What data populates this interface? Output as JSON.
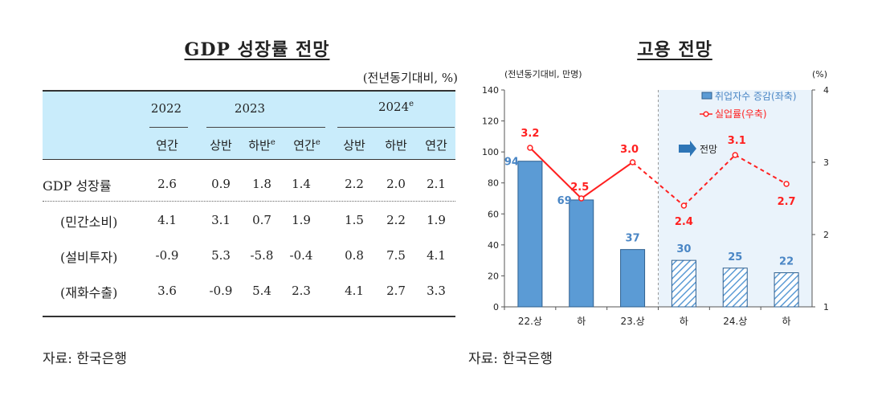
{
  "left": {
    "title": "GDP 성장률 전망",
    "unit": "(전년동기대비, %)",
    "header": {
      "y2022": "2022",
      "y2023": "2023",
      "y2024_base": "2024",
      "y2024_sup": "e",
      "c_annual": "연간",
      "c_h1": "상반",
      "c_h2_base": "하반",
      "c_h2_sup": "e",
      "c_annual_e_base": "연간",
      "c_annual_e_sup": "e",
      "c_h1b": "상반",
      "c_h2b": "하반",
      "c_annualb": "연간"
    },
    "rows": [
      {
        "label": "GDP 성장률",
        "values": [
          "2.6",
          "0.9",
          "1.8",
          "1.4",
          "2.2",
          "2.0",
          "2.1"
        ]
      },
      {
        "label": "(민간소비)",
        "values": [
          "4.1",
          "3.1",
          "0.7",
          "1.9",
          "1.5",
          "2.2",
          "1.9"
        ]
      },
      {
        "label": "(설비투자)",
        "values": [
          "-0.9",
          "5.3",
          "-5.8",
          "-0.4",
          "0.8",
          "7.5",
          "4.1"
        ]
      },
      {
        "label": "(재화수출)",
        "values": [
          "3.6",
          "-0.9",
          "5.4",
          "2.3",
          "4.1",
          "2.7",
          "3.3"
        ]
      }
    ],
    "source": "자료: 한국은행"
  },
  "right": {
    "title": "고용 전망",
    "source": "자료: 한국은행",
    "left_unit": "(전년동기대비, 만명)",
    "right_unit": "(%)",
    "forecast_label": "전망",
    "colors": {
      "bar": "#5b9bd5",
      "bar_stroke": "#2e5f8f",
      "line": "#ff2020",
      "forecast_bg": "#eaf3fb",
      "label_blue": "#4a86c5",
      "label_red": "#ff2020"
    }
  },
  "chart_data": {
    "type": "bar+line",
    "categories": [
      "22.상",
      "하",
      "23.상",
      "하",
      "24.상",
      "하"
    ],
    "forecast_from_index": 3,
    "series": [
      {
        "name": "취업자수 증감(좌축)",
        "type": "bar",
        "axis": "left",
        "values": [
          94,
          69,
          37,
          30,
          25,
          22
        ],
        "labels": [
          "94",
          "69",
          "37",
          "30",
          "25",
          "22"
        ]
      },
      {
        "name": "실업률(우축)",
        "type": "line",
        "axis": "right",
        "values": [
          3.2,
          2.5,
          3.0,
          2.4,
          3.1,
          2.7
        ],
        "labels": [
          "3.2",
          "2.5",
          "3.0",
          "2.4",
          "3.1",
          "2.7"
        ]
      }
    ],
    "y_left": {
      "min": 0,
      "max": 140,
      "ticks": [
        "0",
        "20",
        "40",
        "60",
        "80",
        "100",
        "120",
        "140"
      ]
    },
    "y_right": {
      "min": 1,
      "max": 4,
      "ticks": [
        "1",
        "2",
        "3",
        "4"
      ]
    },
    "legend_position": "top-right",
    "grid": false
  }
}
